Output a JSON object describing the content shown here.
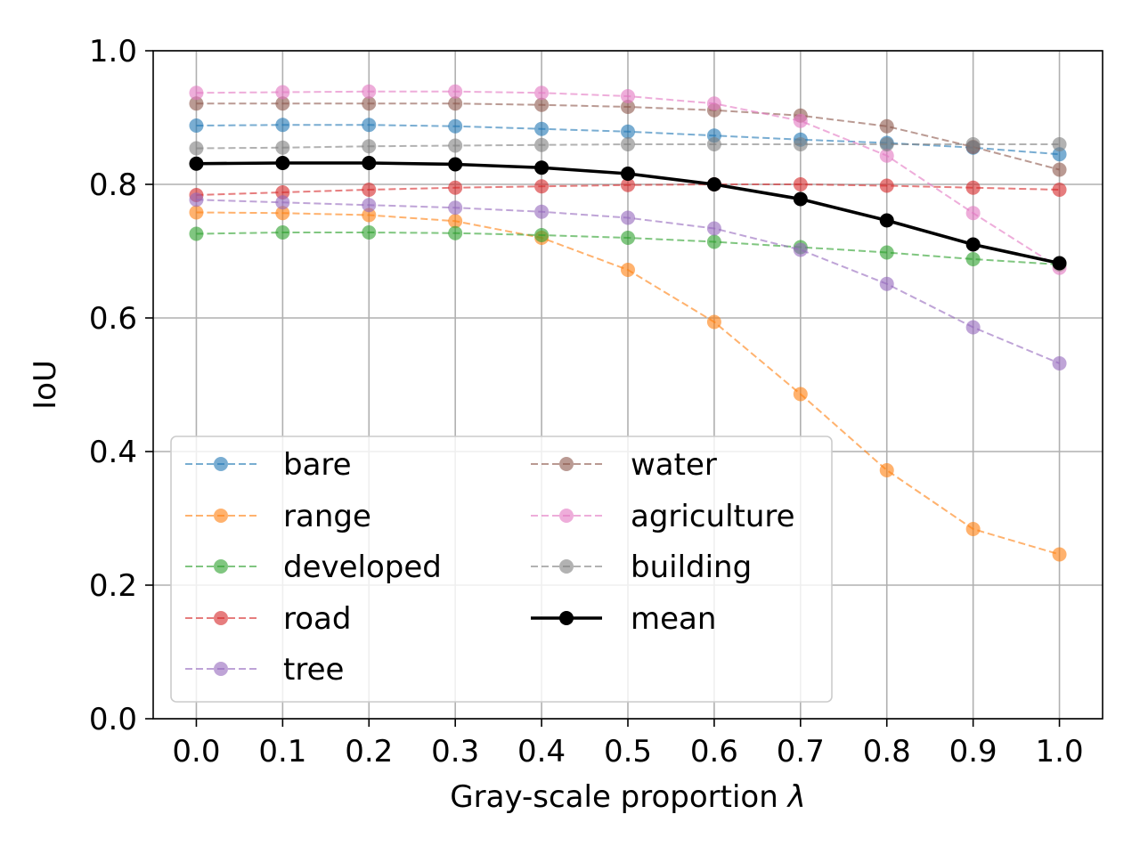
{
  "chart_data": {
    "type": "line",
    "title": "",
    "xlabel": "Gray-scale proportion λ",
    "ylabel": "IoU",
    "x": [
      0.0,
      0.1,
      0.2,
      0.3,
      0.4,
      0.5,
      0.6,
      0.7,
      0.8,
      0.9,
      1.0
    ],
    "x_tick_labels": [
      "0.0",
      "0.1",
      "0.2",
      "0.3",
      "0.4",
      "0.5",
      "0.6",
      "0.7",
      "0.8",
      "0.9",
      "1.0"
    ],
    "y_tick_labels": [
      "0.0",
      "0.2",
      "0.4",
      "0.6",
      "0.8",
      "1.0"
    ],
    "y_ticks": [
      0.0,
      0.2,
      0.4,
      0.6,
      0.8,
      1.0
    ],
    "xlim": [
      -0.05,
      1.05
    ],
    "ylim": [
      0.0,
      1.0
    ],
    "grid": true,
    "legend_position": "lower-left",
    "series": [
      {
        "name": "bare",
        "color": "#1f77b4",
        "style": "dashed",
        "values": [
          0.888,
          0.889,
          0.889,
          0.887,
          0.883,
          0.879,
          0.873,
          0.867,
          0.862,
          0.855,
          0.845
        ]
      },
      {
        "name": "range",
        "color": "#ff7f0e",
        "style": "dashed",
        "values": [
          0.758,
          0.757,
          0.754,
          0.745,
          0.72,
          0.672,
          0.594,
          0.486,
          0.372,
          0.284,
          0.246
        ]
      },
      {
        "name": "developed",
        "color": "#2ca02c",
        "style": "dashed",
        "values": [
          0.726,
          0.728,
          0.728,
          0.727,
          0.724,
          0.72,
          0.714,
          0.706,
          0.698,
          0.688,
          0.68
        ]
      },
      {
        "name": "road",
        "color": "#d62728",
        "style": "dashed",
        "values": [
          0.784,
          0.788,
          0.792,
          0.795,
          0.797,
          0.799,
          0.8,
          0.8,
          0.798,
          0.795,
          0.792
        ]
      },
      {
        "name": "tree",
        "color": "#9467bd",
        "style": "dashed",
        "values": [
          0.777,
          0.773,
          0.769,
          0.765,
          0.759,
          0.75,
          0.734,
          0.702,
          0.651,
          0.586,
          0.532
        ]
      },
      {
        "name": "water",
        "color": "#8c564b",
        "style": "dashed",
        "values": [
          0.921,
          0.921,
          0.921,
          0.921,
          0.919,
          0.916,
          0.911,
          0.903,
          0.887,
          0.856,
          0.822
        ]
      },
      {
        "name": "agriculture",
        "color": "#e377c2",
        "style": "dashed",
        "values": [
          0.937,
          0.938,
          0.939,
          0.939,
          0.937,
          0.932,
          0.921,
          0.895,
          0.843,
          0.757,
          0.675
        ]
      },
      {
        "name": "building",
        "color": "#7f7f7f",
        "style": "dashed",
        "values": [
          0.854,
          0.855,
          0.857,
          0.858,
          0.859,
          0.86,
          0.86,
          0.86,
          0.86,
          0.86,
          0.86
        ]
      },
      {
        "name": "mean",
        "color": "#000000",
        "style": "solid",
        "values": [
          0.831,
          0.832,
          0.832,
          0.83,
          0.825,
          0.816,
          0.8,
          0.778,
          0.746,
          0.71,
          0.682
        ]
      }
    ]
  }
}
